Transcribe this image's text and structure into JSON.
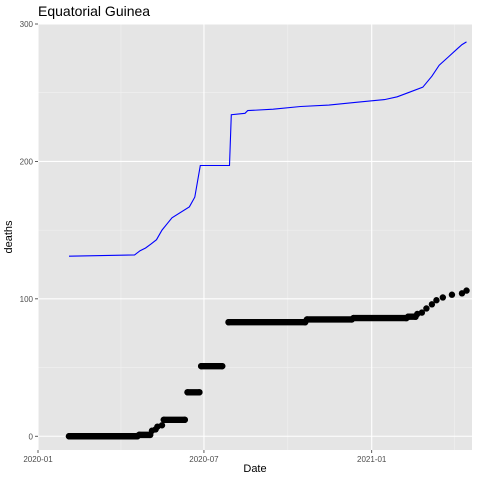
{
  "chart_data": {
    "type": "line",
    "title": "Equatorial Guinea",
    "xlabel": "Date",
    "ylabel": "deaths",
    "ylim": [
      -10,
      300
    ],
    "xlim": [
      "2020-01-01",
      "2021-04-21"
    ],
    "x_ticks": [
      {
        "date": "2020-01-01",
        "label": "2020-01"
      },
      {
        "date": "2020-07-01",
        "label": "2020-07"
      },
      {
        "date": "2021-01-01",
        "label": "2021-01"
      }
    ],
    "y_ticks": [
      0,
      100,
      200,
      300
    ],
    "grid": true,
    "background": "#e5e5e5",
    "series": [
      {
        "style": "line",
        "color": "#0000ff",
        "points": [
          [
            "2020-02-04",
            131
          ],
          [
            "2020-04-16",
            132
          ],
          [
            "2020-04-22",
            135
          ],
          [
            "2020-04-28",
            137
          ],
          [
            "2020-05-04",
            140
          ],
          [
            "2020-05-10",
            143
          ],
          [
            "2020-05-16",
            150
          ],
          [
            "2020-05-22",
            155
          ],
          [
            "2020-05-27",
            159
          ],
          [
            "2020-06-15",
            167
          ],
          [
            "2020-06-21",
            174
          ],
          [
            "2020-06-27",
            197
          ],
          [
            "2020-07-29",
            197
          ],
          [
            "2020-07-31",
            234
          ],
          [
            "2020-08-15",
            235
          ],
          [
            "2020-08-18",
            237
          ],
          [
            "2020-09-15",
            238
          ],
          [
            "2020-10-15",
            240
          ],
          [
            "2020-11-15",
            241
          ],
          [
            "2020-12-15",
            243
          ],
          [
            "2021-01-15",
            245
          ],
          [
            "2021-01-29",
            247
          ],
          [
            "2021-02-10",
            250
          ],
          [
            "2021-02-26",
            254
          ],
          [
            "2021-03-08",
            262
          ],
          [
            "2021-03-16",
            270
          ],
          [
            "2021-03-26",
            276
          ],
          [
            "2021-04-05",
            282
          ],
          [
            "2021-04-10",
            285
          ],
          [
            "2021-04-15",
            287
          ]
        ]
      },
      {
        "style": "points",
        "color": "#000000",
        "points": [
          [
            "2020-02-04",
            0
          ],
          [
            "2020-04-19",
            0
          ],
          [
            "2020-04-21",
            1
          ],
          [
            "2020-05-03",
            1
          ],
          [
            "2020-05-05",
            4
          ],
          [
            "2020-05-09",
            5
          ],
          [
            "2020-05-11",
            7
          ],
          [
            "2020-05-16",
            8
          ],
          [
            "2020-05-18",
            12
          ],
          [
            "2020-06-10",
            12
          ],
          [
            "2020-06-13",
            32
          ],
          [
            "2020-06-26",
            32
          ],
          [
            "2020-06-28",
            51
          ],
          [
            "2020-07-21",
            51
          ],
          [
            "2020-07-28",
            83
          ],
          [
            "2020-10-20",
            83
          ],
          [
            "2020-10-22",
            85
          ],
          [
            "2020-12-10",
            85
          ],
          [
            "2020-12-12",
            86
          ],
          [
            "2021-02-08",
            86
          ],
          [
            "2021-02-10",
            87
          ],
          [
            "2021-02-18",
            87
          ],
          [
            "2021-02-20",
            89
          ],
          [
            "2021-02-25",
            90
          ],
          [
            "2021-03-02",
            93
          ],
          [
            "2021-03-08",
            96
          ],
          [
            "2021-03-13",
            99
          ],
          [
            "2021-03-20",
            101
          ],
          [
            "2021-03-30",
            103
          ],
          [
            "2021-04-10",
            104
          ],
          [
            "2021-04-15",
            106
          ]
        ]
      }
    ]
  }
}
